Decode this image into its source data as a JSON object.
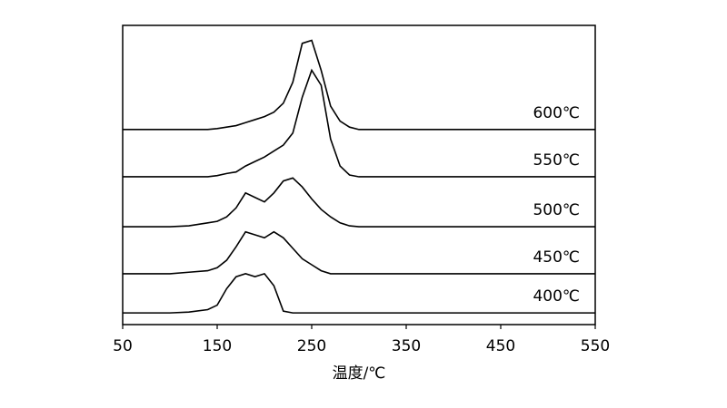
{
  "chart_data": {
    "type": "line",
    "xlabel": "温度/℃",
    "x": [
      50,
      100,
      120,
      140,
      150,
      160,
      170,
      180,
      190,
      200,
      210,
      220,
      230,
      240,
      250,
      260,
      270,
      280,
      290,
      300,
      350,
      400,
      450,
      500,
      550
    ],
    "series": [
      {
        "name": "600℃",
        "color": "#000000",
        "values": [
          65.2,
          65.2,
          65.2,
          65.2,
          65.5,
          66,
          66.5,
          67.5,
          68.5,
          69.5,
          71,
          74,
          81,
          94,
          95,
          85,
          73,
          68,
          66,
          65.2,
          65.2,
          65.2,
          65.2,
          65.2,
          65.2
        ]
      },
      {
        "name": "550℃",
        "color": "#000000",
        "values": [
          49.4,
          49.4,
          49.4,
          49.4,
          49.8,
          50.5,
          51,
          53,
          54.5,
          56,
          58,
          60,
          64,
          76,
          85,
          80,
          62,
          53,
          50,
          49.4,
          49.4,
          49.4,
          49.4,
          49.4,
          49.4
        ]
      },
      {
        "name": "500℃",
        "color": "#000000",
        "values": [
          32.7,
          32.7,
          33,
          34,
          34.5,
          36,
          39,
          44,
          42.5,
          41,
          44,
          48,
          49,
          46,
          42,
          38.5,
          36,
          34,
          33,
          32.7,
          32.7,
          32.7,
          32.7,
          32.7,
          32.7
        ]
      },
      {
        "name": "450℃",
        "color": "#000000",
        "values": [
          17,
          17,
          17.5,
          18,
          19,
          21.5,
          26,
          31,
          30,
          29,
          31,
          29,
          25.5,
          22,
          20,
          18,
          17,
          17,
          17,
          17,
          17,
          17,
          17,
          17,
          17
        ]
      },
      {
        "name": "400℃",
        "color": "#000000",
        "values": [
          3.9,
          3.9,
          4.2,
          5,
          6.5,
          12,
          16,
          17,
          16,
          17,
          13,
          4.5,
          3.9,
          3.9,
          3.9,
          3.9,
          3.9,
          3.9,
          3.9,
          3.9,
          3.9,
          3.9,
          3.9,
          3.9,
          3.9
        ]
      }
    ],
    "xlim": [
      50,
      550
    ],
    "xticks": [
      50,
      150,
      250,
      350,
      450,
      550
    ],
    "ylim": [
      0,
      100
    ]
  }
}
